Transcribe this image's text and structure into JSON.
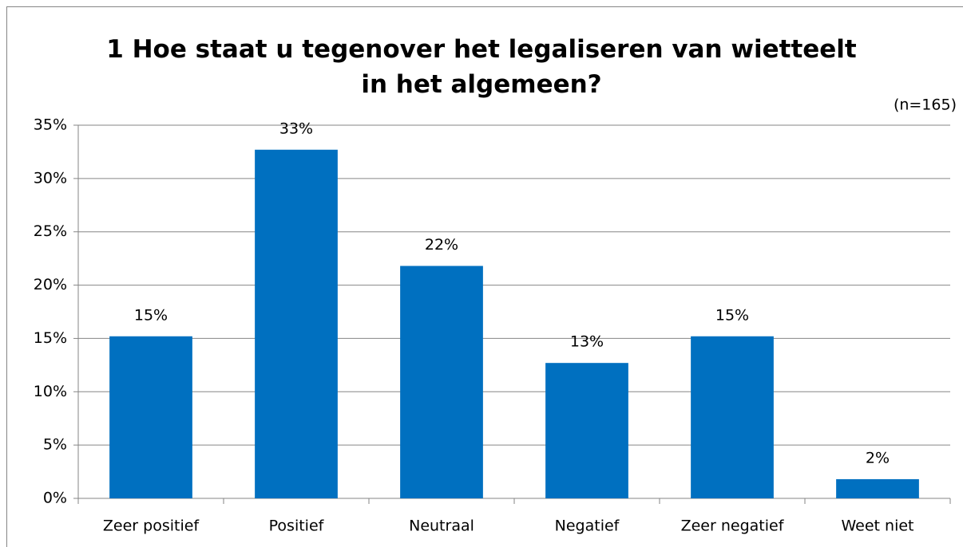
{
  "chart_data": {
    "type": "bar",
    "title": "1 Hoe staat u tegenover het legaliseren van wietteelt in het algemeen?",
    "annotation": "(n=165)",
    "categories": [
      "Zeer positief",
      "Positief",
      "Neutraal",
      "Negatief",
      "Zeer negatief",
      "Weet niet"
    ],
    "values": [
      15.2,
      32.7,
      21.8,
      12.7,
      15.2,
      1.8
    ],
    "value_labels": [
      "15%",
      "33%",
      "22%",
      "13%",
      "15%",
      "2%"
    ],
    "color": "#0070c0",
    "ylim": [
      0,
      35
    ],
    "yticks": [
      {
        "value": 0,
        "label": "0%"
      },
      {
        "value": 5,
        "label": "5%"
      },
      {
        "value": 10,
        "label": "10%"
      },
      {
        "value": 15,
        "label": "15%"
      },
      {
        "value": 20,
        "label": "20%"
      },
      {
        "value": 25,
        "label": "25%"
      },
      {
        "value": 30,
        "label": "30%"
      },
      {
        "value": 35,
        "label": "35%"
      }
    ],
    "grid": true
  }
}
